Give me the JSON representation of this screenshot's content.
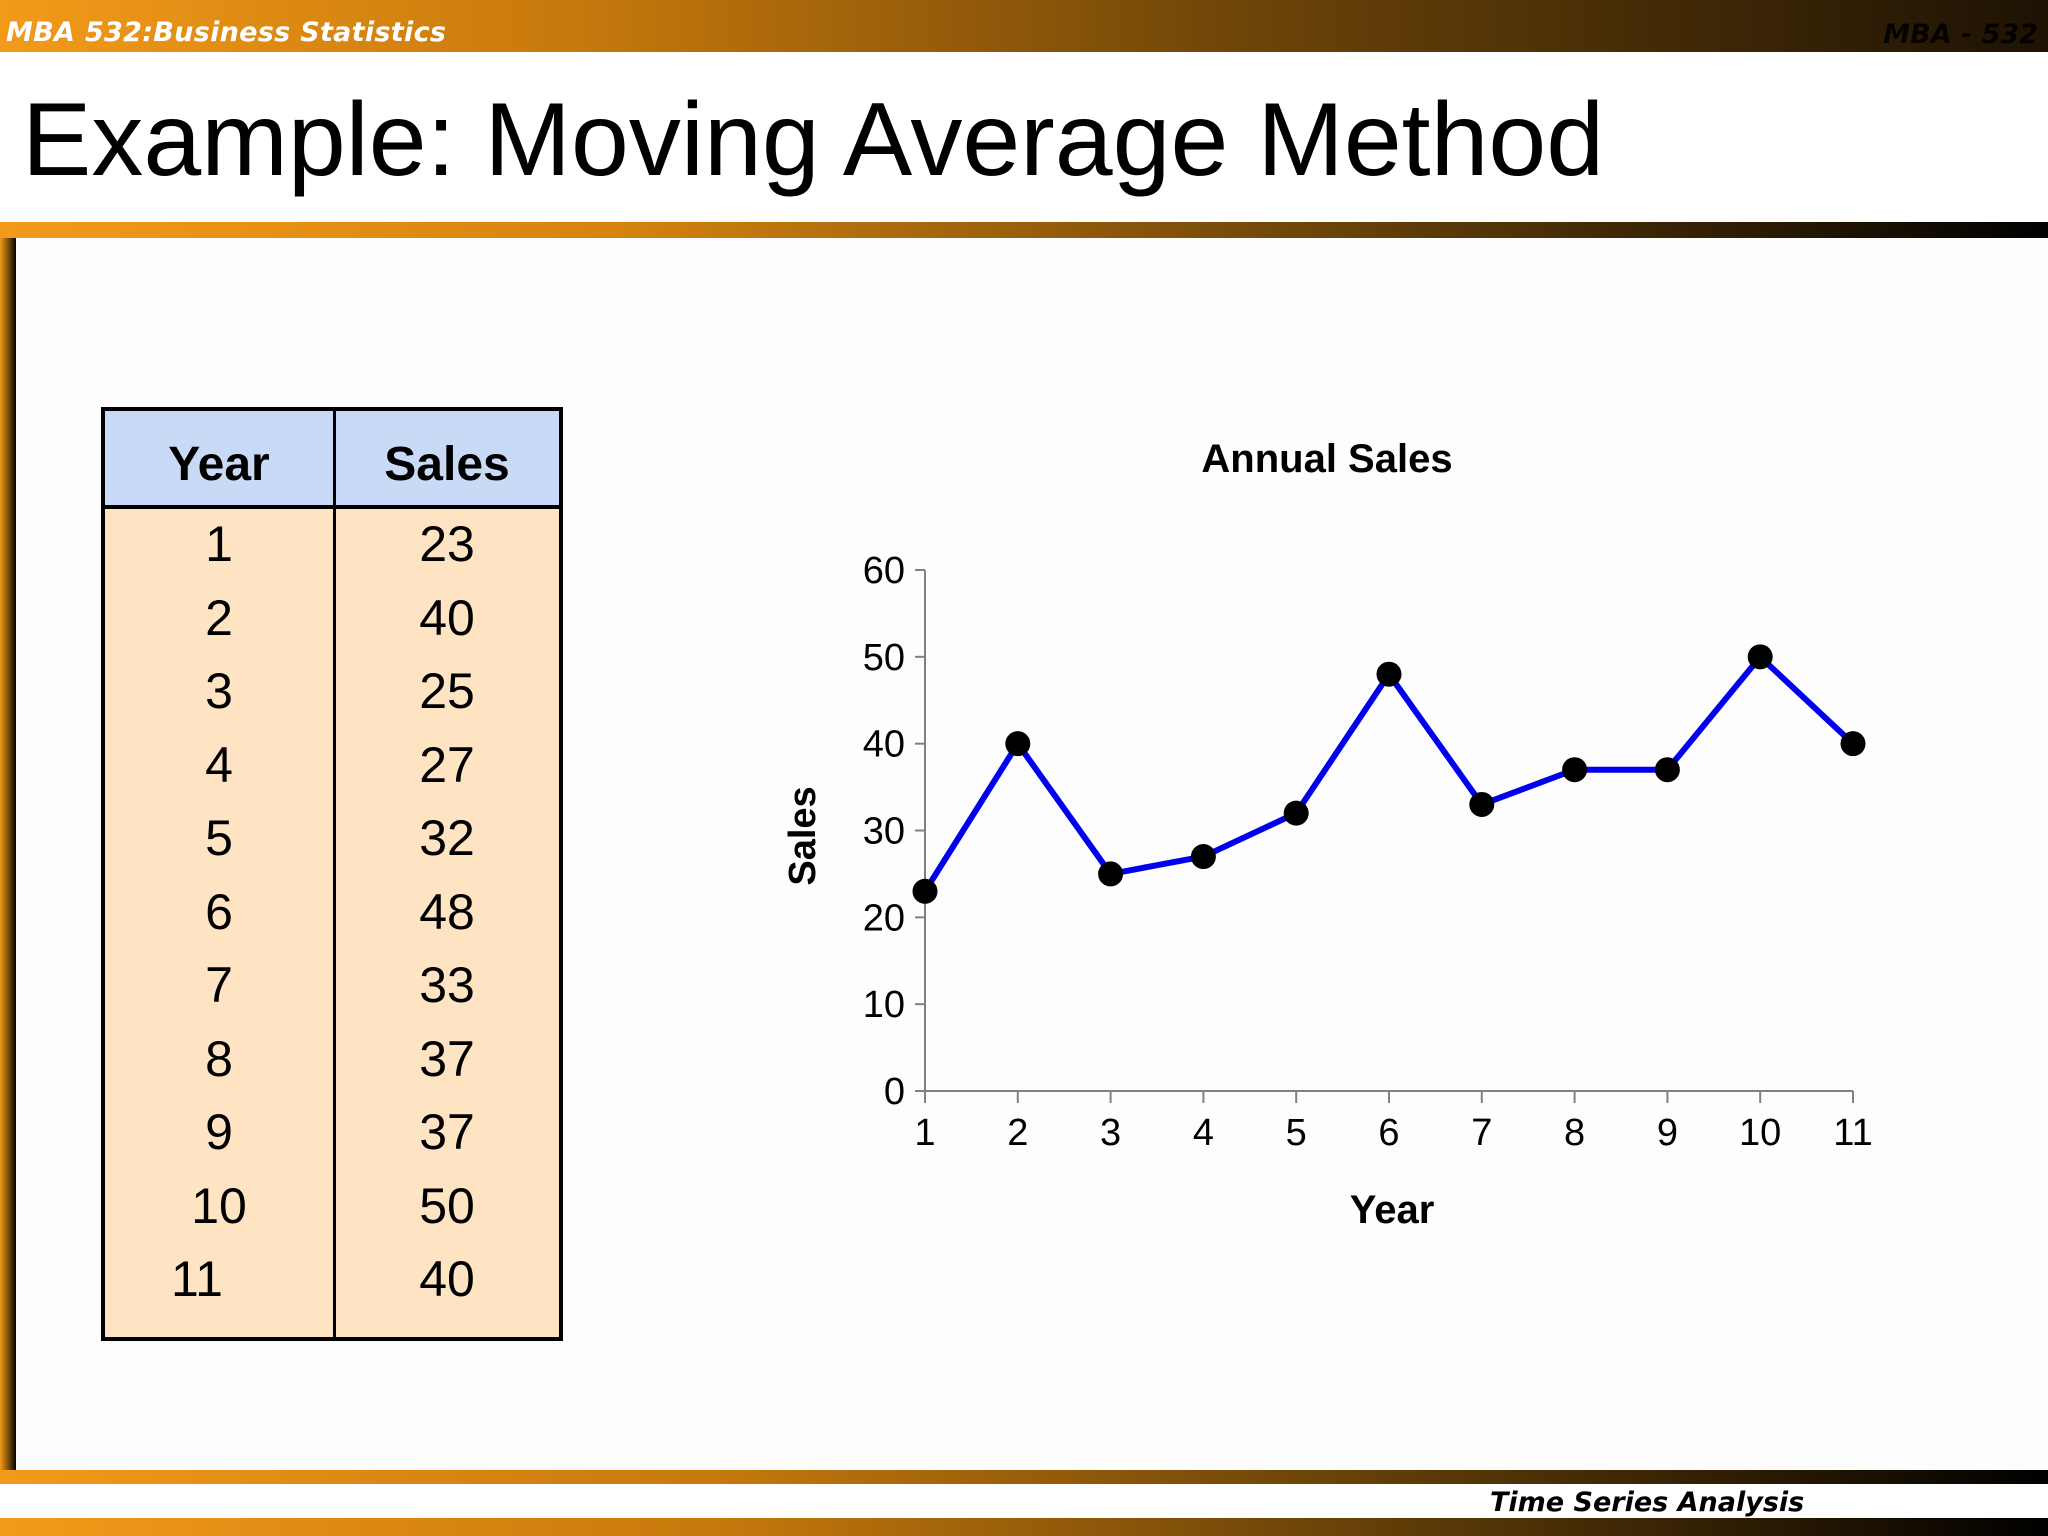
{
  "header": {
    "course_title": "MBA 532:Business Statistics",
    "course_code_right": "MBA - 532"
  },
  "slide_title": "Example: Moving Average Method",
  "footer": {
    "text": "Time Series Analysis"
  },
  "table": {
    "headers": [
      "Year",
      "Sales"
    ],
    "rows": [
      [
        "1",
        "23"
      ],
      [
        "2",
        "40"
      ],
      [
        "3",
        "25"
      ],
      [
        "4",
        "27"
      ],
      [
        "5",
        "32"
      ],
      [
        "6",
        "48"
      ],
      [
        "7",
        "33"
      ],
      [
        "8",
        "37"
      ],
      [
        "9",
        "37"
      ],
      [
        "10",
        "50"
      ],
      [
        "11",
        "40"
      ]
    ]
  },
  "colors": {
    "table_header_bg": "#c9daf6",
    "table_body_bg": "#ffe4c4",
    "series_line": "#0000ee",
    "marker": "#000000",
    "accent_orange": "#f29a1a"
  },
  "chart_data": {
    "type": "line",
    "title": "Annual Sales",
    "xlabel": "Year",
    "ylabel": "Sales",
    "x": [
      1,
      2,
      3,
      4,
      5,
      6,
      7,
      8,
      9,
      10,
      11
    ],
    "series": [
      {
        "values": [
          23,
          40,
          25,
          27,
          32,
          48,
          33,
          37,
          37,
          50,
          40
        ]
      }
    ],
    "ylim": [
      0,
      60
    ],
    "yticks": [
      0,
      10,
      20,
      30,
      40,
      50,
      60
    ],
    "xticks": [
      "1",
      "2",
      "3",
      "4",
      "5",
      "6",
      "7",
      "8",
      "9",
      "10",
      "11"
    ],
    "grid": false,
    "legend": "none",
    "markers": "circle"
  }
}
